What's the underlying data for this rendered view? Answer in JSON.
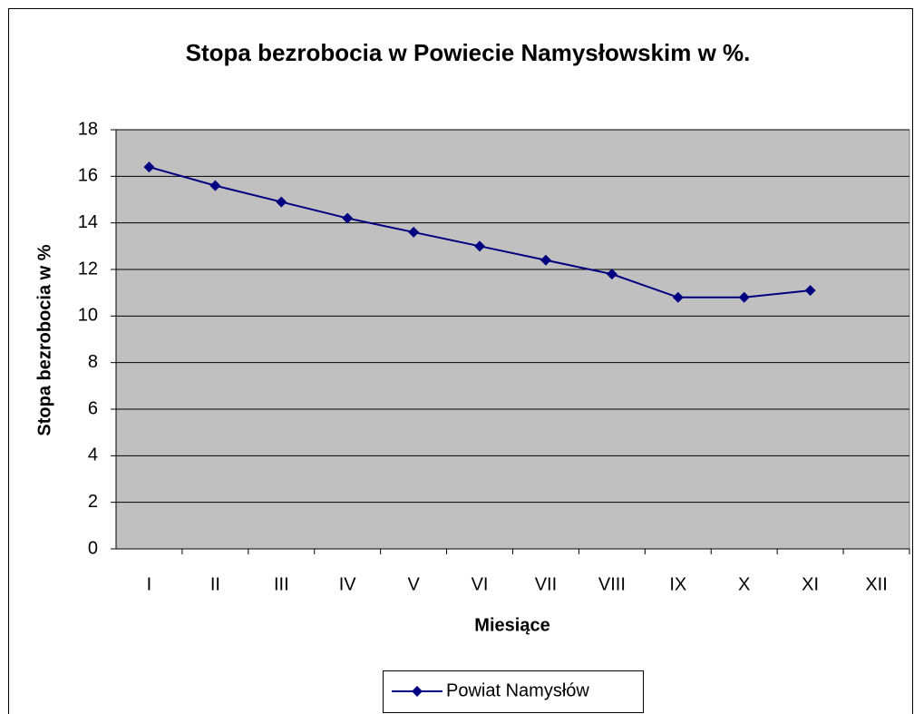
{
  "chart_data": {
    "type": "line",
    "title": "Stopa bezrobocia w Powiecie Namysłowskim  w %.",
    "x_label": "Miesiące",
    "y_label": "Stopa bezrobocia w %",
    "categories": [
      "I",
      "II",
      "III",
      "IV",
      "V",
      "VI",
      "VII",
      "VIII",
      "IX",
      "X",
      "XI",
      "XII"
    ],
    "series": [
      {
        "name": "Powiat Namysłów",
        "color": "#000080",
        "values": [
          16.4,
          15.6,
          14.9,
          14.2,
          13.6,
          13.0,
          12.4,
          11.8,
          10.8,
          10.8,
          11.1,
          null
        ]
      }
    ],
    "ylim": [
      0,
      18
    ],
    "yticks": [
      0,
      2,
      4,
      6,
      8,
      10,
      12,
      14,
      16,
      18
    ],
    "grid": true,
    "legend": "bottom"
  }
}
